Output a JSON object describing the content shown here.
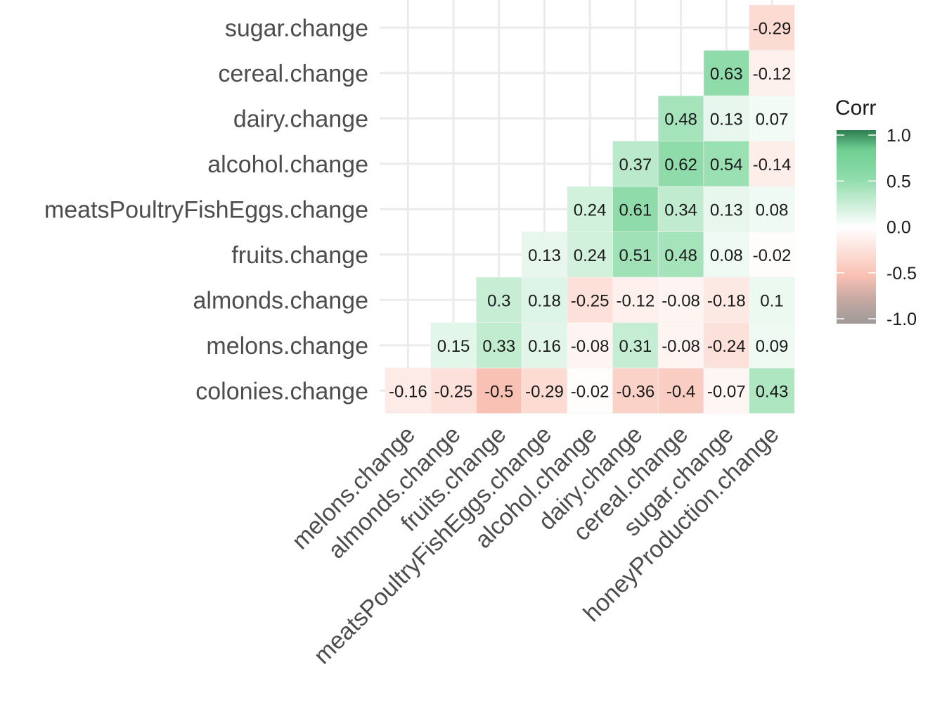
{
  "chart_data": {
    "type": "heatmap",
    "x_categories": [
      "melons.change",
      "almonds.change",
      "fruits.change",
      "meatsPoultryFishEggs.change",
      "alcohol.change",
      "dairy.change",
      "cereal.change",
      "sugar.change",
      "honeyProduction.change"
    ],
    "y_categories": [
      "colonies.change",
      "melons.change",
      "almonds.change",
      "fruits.change",
      "meatsPoultryFishEggs.change",
      "alcohol.change",
      "dairy.change",
      "cereal.change",
      "sugar.change"
    ],
    "rows": [
      {
        "y": "colonies.change",
        "values": [
          -0.16,
          -0.25,
          -0.5,
          -0.29,
          -0.02,
          -0.36,
          -0.4,
          -0.07,
          0.43
        ],
        "labels": [
          "-0.16",
          "-0.25",
          "-0.5",
          "-0.29",
          "-0.02",
          "-0.36",
          "-0.4",
          "-0.07",
          "0.43"
        ]
      },
      {
        "y": "melons.change",
        "values": [
          null,
          0.15,
          0.33,
          0.16,
          -0.08,
          0.31,
          -0.08,
          -0.24,
          0.09
        ],
        "labels": [
          null,
          "0.15",
          "0.33",
          "0.16",
          "-0.08",
          "0.31",
          "-0.08",
          "-0.24",
          "0.09"
        ]
      },
      {
        "y": "almonds.change",
        "values": [
          null,
          null,
          0.3,
          0.18,
          -0.25,
          -0.12,
          -0.08,
          -0.18,
          0.1
        ],
        "labels": [
          null,
          null,
          "0.3",
          "0.18",
          "-0.25",
          "-0.12",
          "-0.08",
          "-0.18",
          "0.1"
        ]
      },
      {
        "y": "fruits.change",
        "values": [
          null,
          null,
          null,
          0.13,
          0.24,
          0.51,
          0.48,
          0.08,
          -0.02
        ],
        "labels": [
          null,
          null,
          null,
          "0.13",
          "0.24",
          "0.51",
          "0.48",
          "0.08",
          "-0.02"
        ]
      },
      {
        "y": "meatsPoultryFishEggs.change",
        "values": [
          null,
          null,
          null,
          null,
          0.24,
          0.61,
          0.34,
          0.13,
          0.08
        ],
        "labels": [
          null,
          null,
          null,
          null,
          "0.24",
          "0.61",
          "0.34",
          "0.13",
          "0.08"
        ]
      },
      {
        "y": "alcohol.change",
        "values": [
          null,
          null,
          null,
          null,
          null,
          0.37,
          0.62,
          0.54,
          -0.14
        ],
        "labels": [
          null,
          null,
          null,
          null,
          null,
          "0.37",
          "0.62",
          "0.54",
          "-0.14"
        ]
      },
      {
        "y": "dairy.change",
        "values": [
          null,
          null,
          null,
          null,
          null,
          null,
          0.48,
          0.13,
          0.07
        ],
        "labels": [
          null,
          null,
          null,
          null,
          null,
          null,
          "0.48",
          "0.13",
          "0.07"
        ]
      },
      {
        "y": "cereal.change",
        "values": [
          null,
          null,
          null,
          null,
          null,
          null,
          null,
          0.63,
          -0.12
        ],
        "labels": [
          null,
          null,
          null,
          null,
          null,
          null,
          null,
          "0.63",
          "-0.12"
        ]
      },
      {
        "y": "sugar.change",
        "values": [
          null,
          null,
          null,
          null,
          null,
          null,
          null,
          null,
          -0.29
        ],
        "labels": [
          null,
          null,
          null,
          null,
          null,
          null,
          null,
          null,
          "-0.29"
        ]
      }
    ],
    "legend": {
      "title": "Corr",
      "ticks": [
        1.0,
        0.5,
        0.0,
        -0.5,
        -1.0
      ],
      "tick_labels": [
        "1.0",
        "0.5",
        "0.0",
        "-0.5",
        "-1.0"
      ],
      "placement": "right"
    },
    "colors": {
      "negative": "#f9c1b3",
      "zero": "#ffffff",
      "positive": "#8fdcaa",
      "grid": "#ebebeb",
      "legend_top": "#2e8b57",
      "legend_bottom": "#9e9a99"
    },
    "range": [
      -1,
      1
    ],
    "grid": true
  }
}
